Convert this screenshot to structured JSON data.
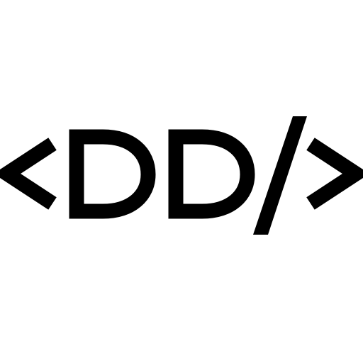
{
  "logo": {
    "text": "<DD/>",
    "accessible_label": "<DD/>",
    "colors": {
      "background": "#ffffff",
      "foreground": "#000000"
    },
    "icon": "code-brackets-logo"
  }
}
